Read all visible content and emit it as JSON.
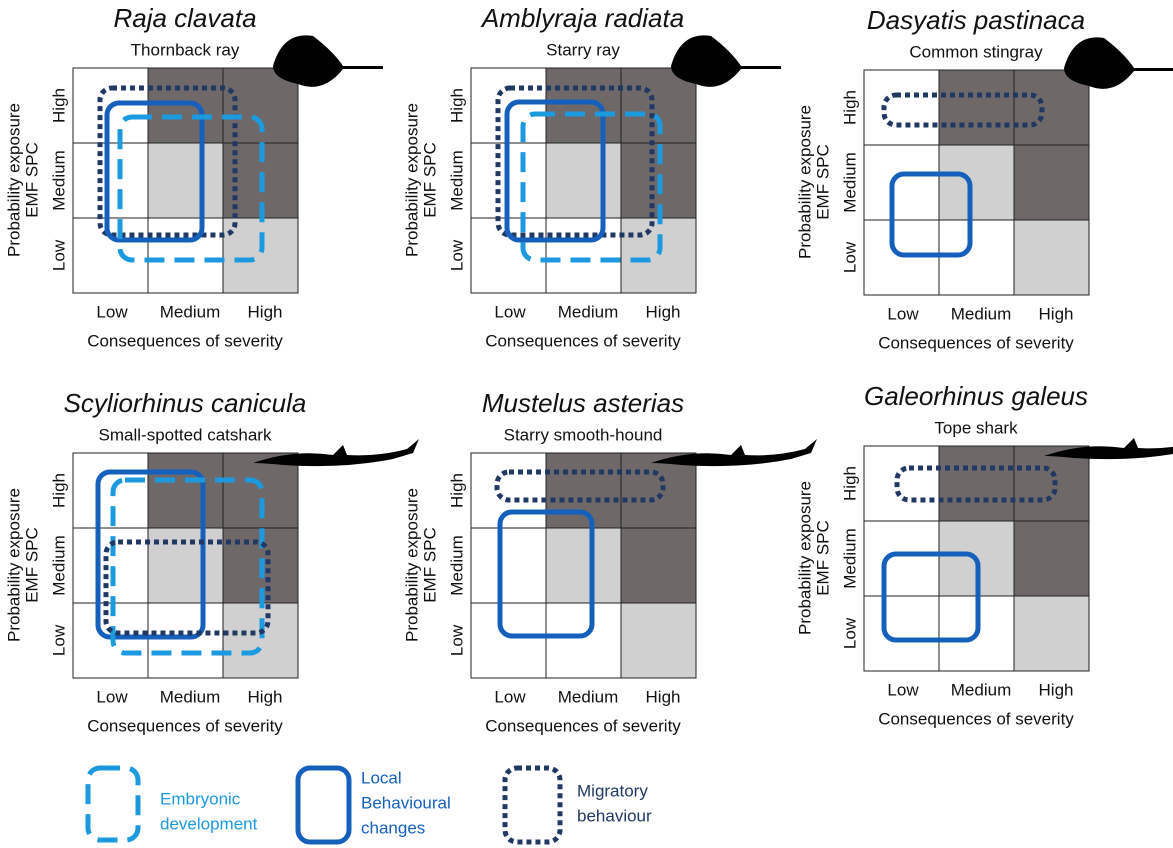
{
  "panels": [
    {
      "title": "Raja clavata",
      "subtitle": "Thornback ray",
      "y_axis_title": [
        "Probability exposure",
        "EMF SPC"
      ],
      "y_labels": [
        "High",
        "Medium",
        "Low"
      ],
      "x_labels": [
        "Low",
        "Medium",
        "High"
      ],
      "x_axis_title": "Consequences of severity"
    },
    {
      "title": "Amblyraja radiata",
      "subtitle": "Starry ray",
      "y_axis_title": [
        "Probability exposure",
        "EMF SPC"
      ],
      "y_labels": [
        "High",
        "Medium",
        "Low"
      ],
      "x_labels": [
        "Low",
        "Medium",
        "High"
      ],
      "x_axis_title": "Consequences of severity"
    },
    {
      "title": "Dasyatis pastinaca",
      "subtitle": "Common stingray",
      "y_axis_title": [
        "Probability exposure",
        "EMF SPC"
      ],
      "y_labels": [
        "High",
        "Medium",
        "Low"
      ],
      "x_labels": [
        "Low",
        "Medium",
        "High"
      ],
      "x_axis_title": "Consequences of severity"
    },
    {
      "title": "Scyliorhinus canicula",
      "subtitle": "Small-spotted catshark",
      "y_axis_title": [
        "Probability exposure",
        "EMF SPC"
      ],
      "y_labels": [
        "High",
        "Medium",
        "Low"
      ],
      "x_labels": [
        "Low",
        "Medium",
        "High"
      ],
      "x_axis_title": "Consequences of severity"
    },
    {
      "title": "Mustelus asterias",
      "subtitle": "Starry smooth-hound",
      "y_axis_title": [
        "Probability exposure",
        "EMF SPC"
      ],
      "y_labels": [
        "High",
        "Medium",
        "Low"
      ],
      "x_labels": [
        "Low",
        "Medium",
        "High"
      ],
      "x_axis_title": "Consequences of severity"
    },
    {
      "title": "Galeorhinus galeus",
      "subtitle": "Tope shark",
      "y_axis_title": [
        "Probability exposure",
        "EMF SPC"
      ],
      "y_labels": [
        "High",
        "Medium",
        "Low"
      ],
      "x_labels": [
        "Low",
        "Medium",
        "High"
      ],
      "x_axis_title": "Consequences of severity"
    }
  ],
  "legend": [
    {
      "label": [
        "Embryonic",
        "development"
      ]
    },
    {
      "label": [
        "Local",
        "Behavioural",
        "changes"
      ]
    },
    {
      "label": [
        "Migratory",
        "behaviour"
      ]
    }
  ]
}
